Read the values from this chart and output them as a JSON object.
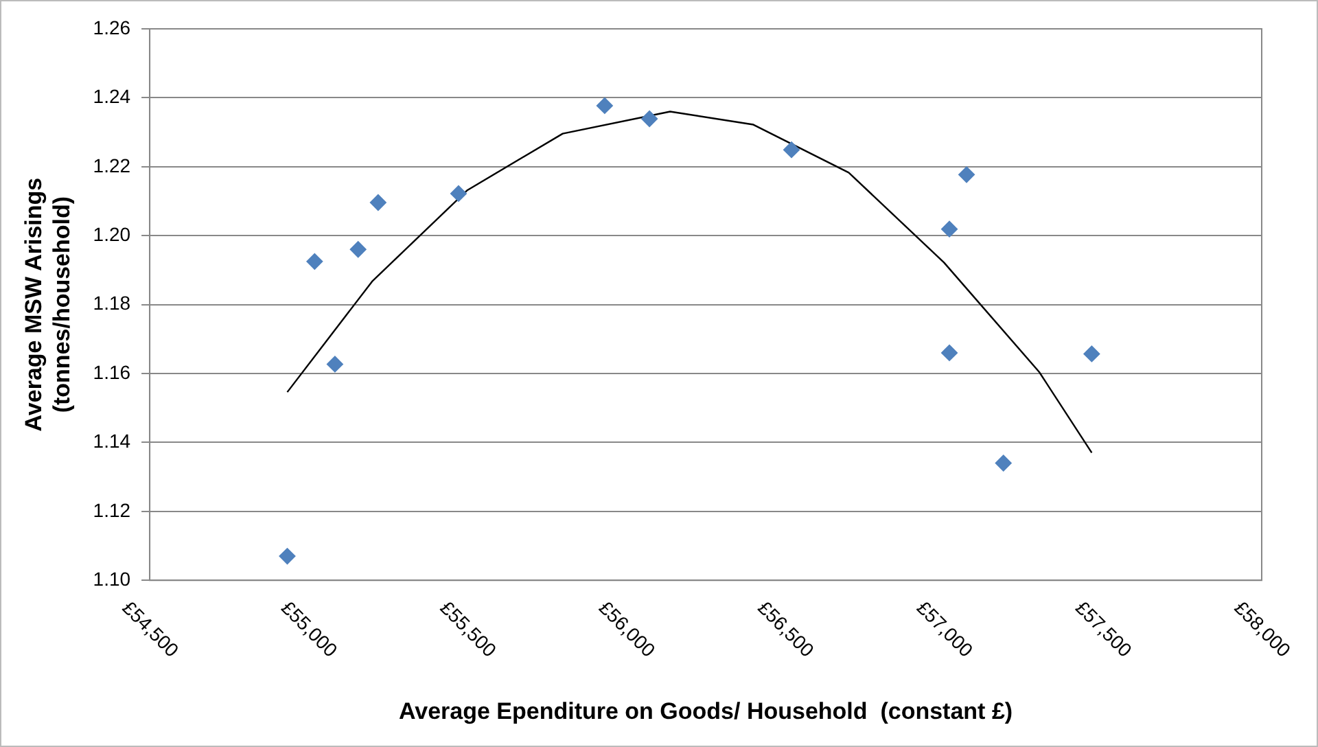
{
  "chart_data": {
    "type": "scatter",
    "xlabel": "Average Ependiture on Goods/ Household  (constant £)",
    "ylabel": "Average MSW Arisings\n(tonnes/household)",
    "xlim": [
      54500,
      58000
    ],
    "xticks": [
      {
        "value": 54500,
        "label": "£54,500"
      },
      {
        "value": 55000,
        "label": "£55,000"
      },
      {
        "value": 55500,
        "label": "£55,500"
      },
      {
        "value": 56000,
        "label": "£56,000"
      },
      {
        "value": 56500,
        "label": "£56,500"
      },
      {
        "value": 57000,
        "label": "£57,000"
      },
      {
        "value": 57500,
        "label": "£57,500"
      },
      {
        "value": 58000,
        "label": "£58,000"
      }
    ],
    "ylim": [
      1.1,
      1.26
    ],
    "yticks": [
      {
        "value": 1.1,
        "label": "1.10"
      },
      {
        "value": 1.12,
        "label": "1.12"
      },
      {
        "value": 1.14,
        "label": "1.14"
      },
      {
        "value": 1.16,
        "label": "1.16"
      },
      {
        "value": 1.18,
        "label": "1.18"
      },
      {
        "value": 1.2,
        "label": "1.20"
      },
      {
        "value": 1.22,
        "label": "1.22"
      },
      {
        "value": 1.24,
        "label": "1.24"
      },
      {
        "value": 1.26,
        "label": "1.26"
      }
    ],
    "grid": "y",
    "legend": false,
    "marker": "diamond",
    "series": [
      {
        "color": "#4f81bd",
        "x": [
          54933,
          55019,
          55083,
          55156,
          55219,
          55472,
          55932,
          56073,
          56520,
          57017,
          57071,
          57017,
          57187,
          57465
        ],
        "values": [
          1.107,
          1.1925,
          1.1627,
          1.196,
          1.2096,
          1.2122,
          1.2377,
          1.2339,
          1.2249,
          1.2019,
          1.2177,
          1.166,
          1.134,
          1.1657
        ]
      },
      {
        "type": "line",
        "color": "#000000",
        "marker": "none",
        "x": [
          54933,
          55200,
          55500,
          55800,
          56138,
          56400,
          56700,
          57000,
          57300,
          57465
        ],
        "values": [
          1.1546,
          1.1867,
          1.2132,
          1.2296,
          1.236,
          1.2322,
          1.2183,
          1.1922,
          1.1604,
          1.137
        ]
      }
    ]
  }
}
